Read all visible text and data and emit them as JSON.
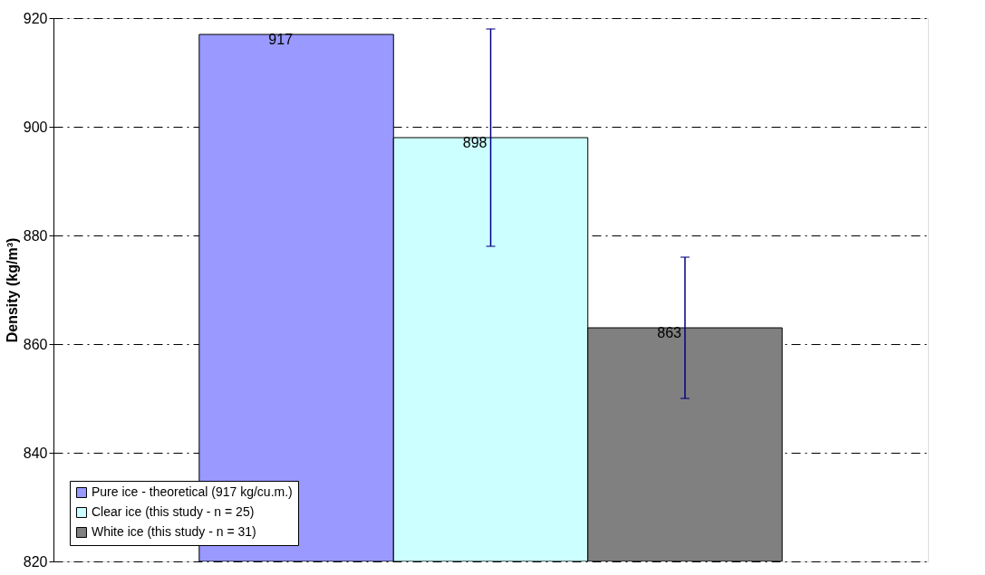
{
  "chart_data": {
    "type": "bar",
    "ylabel": "Density (kg/m³)",
    "categories": [
      null
    ],
    "series": [
      {
        "name": "Pure ice - theoretical (917 kg/cu.m.)",
        "color": "#9999ff",
        "values": [
          917
        ]
      },
      {
        "name": "Clear ice (this study - n = 25)",
        "color": "#ccffff",
        "values": [
          898
        ],
        "errors": [
          20
        ]
      },
      {
        "name": "White ice (this study - n = 31)",
        "color": "#808080",
        "values": [
          863
        ],
        "errors": [
          13
        ]
      }
    ],
    "ylim": [
      820,
      920
    ],
    "yticks": [
      820,
      840,
      860,
      880,
      900,
      920
    ],
    "grid": "y",
    "legend": "bottom left",
    "data_labels": true,
    "tick_labels": "y"
  }
}
